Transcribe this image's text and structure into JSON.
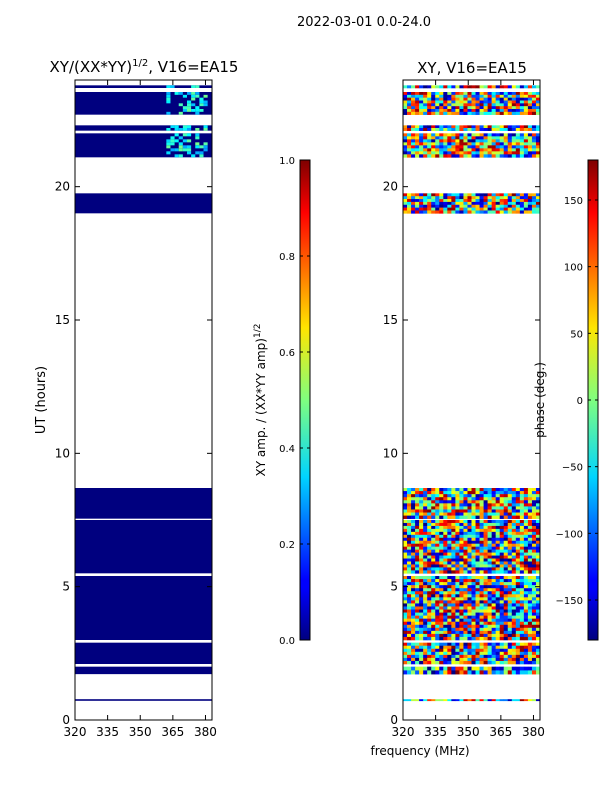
{
  "suptitle": "2022-03-01 0.0-24.0",
  "xlabel_shared": "frequency (MHz)",
  "chart_data": [
    {
      "type": "heatmap",
      "title": "XY/(XX*YY)",
      "title_exp": "1/2",
      "title_suffix": ", V16=EA15",
      "ylabel": "UT (hours)",
      "xlim": [
        320,
        383
      ],
      "ylim": [
        0,
        24
      ],
      "xticks": [
        {
          "v": 320,
          "label": "320"
        },
        {
          "v": 335,
          "label": "335"
        },
        {
          "v": 350,
          "label": "350"
        },
        {
          "v": 365,
          "label": "365"
        },
        {
          "v": 380,
          "label": "380"
        }
      ],
      "yticks": [
        {
          "v": 0,
          "label": "0"
        },
        {
          "v": 5,
          "label": "5"
        },
        {
          "v": 10,
          "label": "10"
        },
        {
          "v": 15,
          "label": "15"
        },
        {
          "v": 20,
          "label": "20"
        }
      ],
      "value_range": [
        0.0,
        1.0
      ],
      "data_bands_ut": [
        [
          0.72,
          0.78
        ],
        [
          1.72,
          2.0
        ],
        [
          2.1,
          2.9
        ],
        [
          3.0,
          5.4
        ],
        [
          5.5,
          7.5
        ],
        [
          7.55,
          8.7
        ],
        [
          19.0,
          19.75
        ],
        [
          21.1,
          22.0
        ],
        [
          22.1,
          22.3
        ],
        [
          22.7,
          23.55
        ],
        [
          23.7,
          23.8
        ]
      ],
      "notes": "Amplitude near 0.0 almost everywhere; brighter values appear near 362-380 MHz between 22 and 24 h."
    },
    {
      "type": "colorbar",
      "label": "XY amp. / (XX*YY amp)",
      "label_exp": "1/2",
      "range": [
        0.0,
        1.0
      ],
      "ticks": [
        {
          "v": 0.0,
          "label": "0.0"
        },
        {
          "v": 0.2,
          "label": "0.2"
        },
        {
          "v": 0.4,
          "label": "0.4"
        },
        {
          "v": 0.6,
          "label": "0.6"
        },
        {
          "v": 0.8,
          "label": "0.8"
        },
        {
          "v": 1.0,
          "label": "1.0"
        }
      ]
    },
    {
      "type": "heatmap",
      "title": "XY, V16=EA15",
      "xlim": [
        320,
        383
      ],
      "ylim": [
        0,
        24
      ],
      "xticks": [
        {
          "v": 320,
          "label": "320"
        },
        {
          "v": 335,
          "label": "335"
        },
        {
          "v": 350,
          "label": "350"
        },
        {
          "v": 365,
          "label": "365"
        },
        {
          "v": 380,
          "label": "380"
        }
      ],
      "yticks": [
        {
          "v": 0,
          "label": "0"
        },
        {
          "v": 5,
          "label": "5"
        },
        {
          "v": 10,
          "label": "10"
        },
        {
          "v": 15,
          "label": "15"
        },
        {
          "v": 20,
          "label": "20"
        }
      ],
      "value_range": [
        -180,
        180
      ],
      "data_bands_ut": [
        [
          0.72,
          0.78
        ],
        [
          1.72,
          2.0
        ],
        [
          2.1,
          2.9
        ],
        [
          3.0,
          5.4
        ],
        [
          5.5,
          7.5
        ],
        [
          7.55,
          8.7
        ],
        [
          19.0,
          19.75
        ],
        [
          21.1,
          22.0
        ],
        [
          22.1,
          22.3
        ],
        [
          22.7,
          23.55
        ],
        [
          23.7,
          23.8
        ]
      ],
      "notes": "Phase appears noisy across the full -180 to 180 deg range."
    },
    {
      "type": "colorbar",
      "label": "phase (deg.)",
      "range": [
        -180,
        180
      ],
      "ticks": [
        {
          "v": -150,
          "label": "−150"
        },
        {
          "v": -100,
          "label": "−100"
        },
        {
          "v": -50,
          "label": "−50"
        },
        {
          "v": 0,
          "label": "0"
        },
        {
          "v": 50,
          "label": "50"
        },
        {
          "v": 100,
          "label": "100"
        },
        {
          "v": 150,
          "label": "150"
        }
      ]
    }
  ]
}
